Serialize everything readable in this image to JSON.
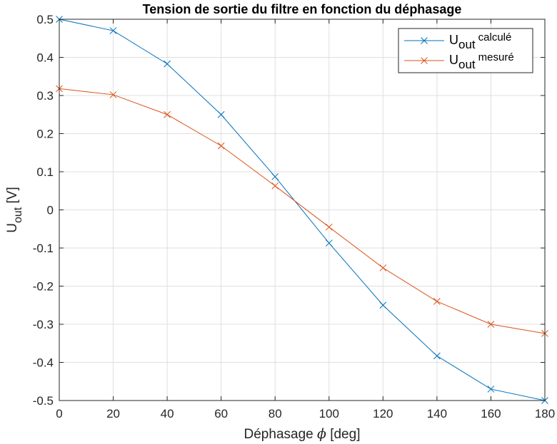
{
  "chart_data": {
    "type": "line",
    "title": "Tension de sortie du filtre en fonction du déphasage",
    "xlabel": {
      "prefix": "Déphasage ",
      "symbol": "ϕ",
      "suffix": " [deg]"
    },
    "ylabel": {
      "base": "U",
      "sub": "out",
      "suffix": " [V]"
    },
    "xlim": [
      0,
      180
    ],
    "ylim": [
      -0.5,
      0.5
    ],
    "xticks": [
      0,
      20,
      40,
      60,
      80,
      100,
      120,
      140,
      160,
      180
    ],
    "yticks": [
      0.5,
      0.4,
      0.3,
      0.2,
      0.1,
      0,
      -0.1,
      -0.2,
      -0.3,
      -0.4,
      -0.5
    ],
    "xtick_labels": [
      "0",
      "20",
      "40",
      "60",
      "80",
      "100",
      "120",
      "140",
      "160",
      "180"
    ],
    "ytick_labels": [
      "0.5",
      "0.4",
      "0.3",
      "0.2",
      "0.1",
      "0",
      "-0.1",
      "-0.2",
      "-0.3",
      "-0.4",
      "-0.5"
    ],
    "grid": true,
    "legend_position": "top-right",
    "x": [
      0,
      20,
      40,
      60,
      80,
      100,
      120,
      140,
      160,
      180
    ],
    "series": [
      {
        "name": "U_out calculé",
        "legend_base": "U",
        "legend_sub": "out",
        "legend_super": "calculé",
        "color": "#0072BD",
        "marker": "x",
        "values": [
          0.5,
          0.47,
          0.383,
          0.25,
          0.087,
          -0.087,
          -0.25,
          -0.383,
          -0.47,
          -0.5
        ]
      },
      {
        "name": "U_out mesuré",
        "legend_base": "U",
        "legend_sub": "out",
        "legend_super": "mesuré",
        "color": "#D95319",
        "marker": "x",
        "values": [
          0.318,
          0.302,
          0.25,
          0.168,
          0.063,
          -0.045,
          -0.152,
          -0.24,
          -0.3,
          -0.324
        ]
      }
    ]
  }
}
